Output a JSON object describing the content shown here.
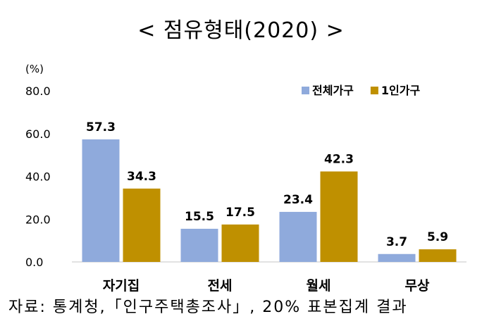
{
  "title": "< 점유형태(2020) >",
  "source": "자료: 통계청,「인구주택총조사」, 20% 표본집계 결과",
  "chart_data": {
    "type": "bar",
    "unit_label": "(%)",
    "categories": [
      "자기집",
      "전세",
      "월세",
      "무상"
    ],
    "series": [
      {
        "name": "전체가구",
        "color": "#8faadc",
        "values": [
          57.3,
          15.5,
          23.4,
          3.7
        ]
      },
      {
        "name": "1인가구",
        "color": "#bf9000",
        "values": [
          34.3,
          17.5,
          42.3,
          5.9
        ]
      }
    ],
    "ylim": [
      0,
      80
    ],
    "yticks": [
      "0.0",
      "20.0",
      "40.0",
      "60.0",
      "80.0"
    ],
    "ytick_values": [
      0,
      20,
      40,
      60,
      80
    ],
    "grid": false,
    "legend_position": "top-right"
  }
}
